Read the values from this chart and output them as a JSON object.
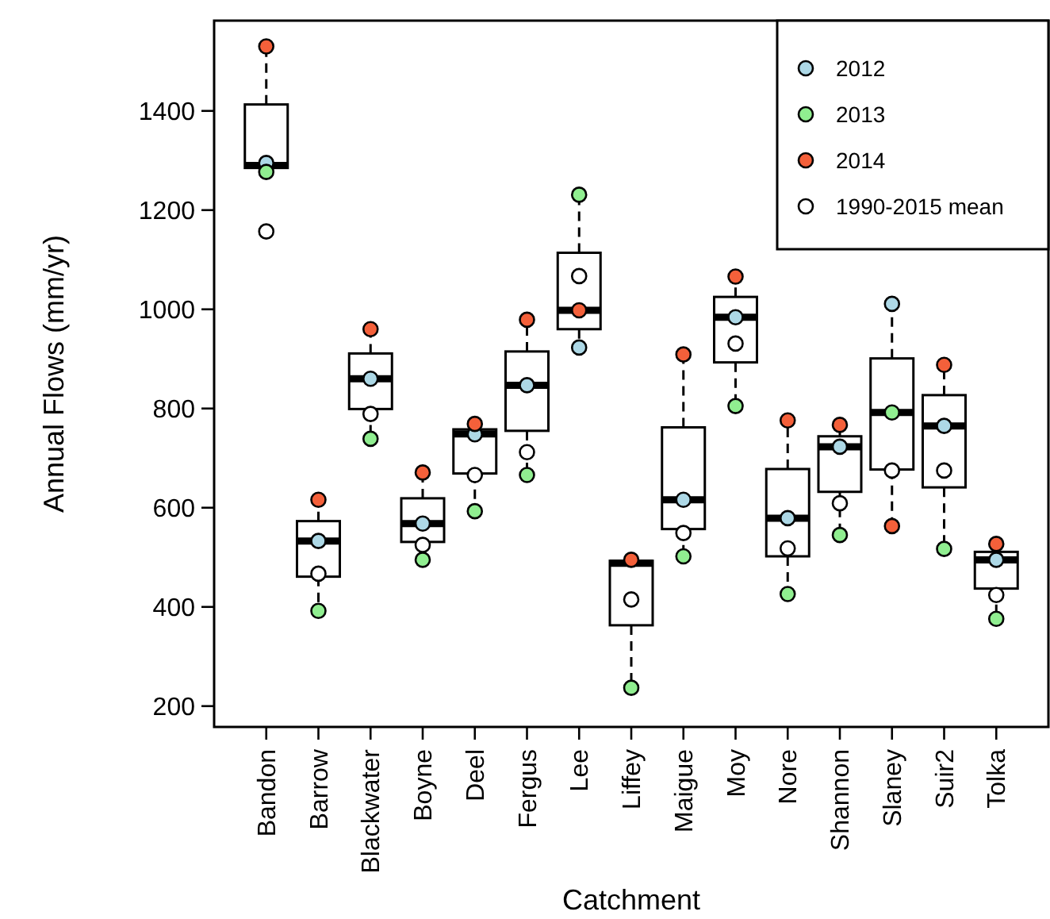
{
  "chart_data": {
    "type": "box",
    "xlabel": "Catchment",
    "ylabel": "Annual Flows (mm/yr)",
    "categories": [
      "Bandon",
      "Barrow",
      "Blackwater",
      "Boyne",
      "Deel",
      "Fergus",
      "Lee",
      "Liffey",
      "Maigue",
      "Moy",
      "Nore",
      "Shannon",
      "Slaney",
      "Suir2",
      "Tolka"
    ],
    "ylim": [
      158,
      1582
    ],
    "yticks": [
      200,
      400,
      600,
      800,
      1000,
      1200,
      1400
    ],
    "legend": "top right",
    "grid": false,
    "marker": "circle",
    "boxes": [
      {
        "low": 1280,
        "q1": 1285,
        "median": 1290,
        "q3": 1413,
        "high": 1530
      },
      {
        "low": 392,
        "q1": 461,
        "median": 533,
        "q3": 573,
        "high": 616
      },
      {
        "low": 739,
        "q1": 799,
        "median": 860,
        "q3": 911,
        "high": 960
      },
      {
        "low": 495,
        "q1": 531,
        "median": 568,
        "q3": 619,
        "high": 671
      },
      {
        "low": 593,
        "q1": 669,
        "median": 749,
        "q3": 758,
        "high": 769
      },
      {
        "low": 666,
        "q1": 755,
        "median": 847,
        "q3": 915,
        "high": 979
      },
      {
        "low": 923,
        "q1": 960,
        "median": 998,
        "q3": 1114,
        "high": 1231
      },
      {
        "low": 237,
        "q1": 363,
        "median": 488,
        "q3": 493,
        "high": 495
      },
      {
        "low": 502,
        "q1": 557,
        "median": 616,
        "q3": 762,
        "high": 909
      },
      {
        "low": 805,
        "q1": 893,
        "median": 984,
        "q3": 1025,
        "high": 1066
      },
      {
        "low": 426,
        "q1": 502,
        "median": 579,
        "q3": 678,
        "high": 776
      },
      {
        "low": 545,
        "q1": 632,
        "median": 723,
        "q3": 744,
        "high": 767
      },
      {
        "low": 563,
        "q1": 677,
        "median": 792,
        "q3": 901,
        "high": 1011
      },
      {
        "low": 517,
        "q1": 641,
        "median": 765,
        "q3": 827,
        "high": 888
      },
      {
        "low": 376,
        "q1": 437,
        "median": 495,
        "q3": 511,
        "high": 527
      }
    ],
    "series": [
      {
        "type": "scatter",
        "name": "2012",
        "color": "#add8e6",
        "values": [
          1295,
          533,
          860,
          568,
          748,
          847,
          923,
          null,
          616,
          984,
          579,
          723,
          1011,
          765,
          495
        ]
      },
      {
        "type": "scatter",
        "name": "2013",
        "color": "#90ee90",
        "values": [
          1277,
          392,
          739,
          495,
          593,
          666,
          1231,
          237,
          502,
          805,
          426,
          545,
          792,
          517,
          376
        ]
      },
      {
        "type": "scatter",
        "name": "2014",
        "color": "#f4603a",
        "values": [
          1530,
          616,
          960,
          671,
          769,
          979,
          998,
          495,
          909,
          1066,
          776,
          767,
          563,
          888,
          527
        ]
      },
      {
        "type": "scatter",
        "name": "1990-2015 mean",
        "color": "#ffffff",
        "values": [
          1157,
          467,
          789,
          525,
          666,
          712,
          1067,
          415,
          549,
          931,
          518,
          609,
          675,
          675,
          424
        ]
      }
    ]
  }
}
